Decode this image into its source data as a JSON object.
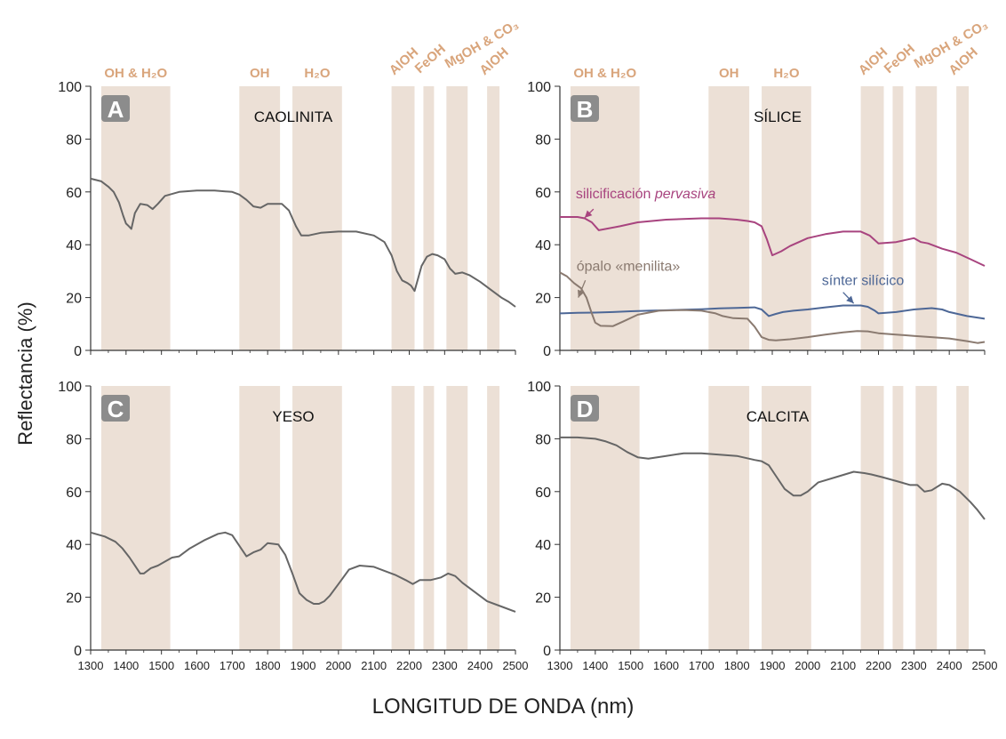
{
  "figure": {
    "ylabel": "Reflectancia (%)",
    "xlabel": "LONGITUD DE ONDA (nm)",
    "xlim": [
      1300,
      2500
    ],
    "ylim": [
      0,
      100
    ],
    "xticks": [
      1300,
      1400,
      1500,
      1600,
      1700,
      1800,
      1900,
      2000,
      2100,
      2200,
      2300,
      2400,
      2500
    ],
    "yticks": [
      0,
      20,
      40,
      60,
      80,
      100
    ],
    "band_color": "#ece0d6",
    "band_label_color": "#d9a57c",
    "curve_color": "#666666",
    "bands": [
      {
        "label": "OH & H₂O",
        "from": 1330,
        "to": 1525
      },
      {
        "label": "OH",
        "from": 1720,
        "to": 1835
      },
      {
        "label": "H₂O",
        "from": 1870,
        "to": 2010
      },
      {
        "label": "AlOH",
        "from": 2150,
        "to": 2215
      },
      {
        "label": "FeOH",
        "from": 2240,
        "to": 2270
      },
      {
        "label": "MgOH & CO₃",
        "from": 2305,
        "to": 2365
      },
      {
        "label": "AlOH",
        "from": 2420,
        "to": 2455
      }
    ]
  },
  "chart_data": [
    {
      "type": "line",
      "panel": "A",
      "title": "CAOLINITA",
      "xlim": [
        1300,
        2500
      ],
      "ylim": [
        0,
        100
      ],
      "series": [
        {
          "color": "#666666",
          "x": [
            1300,
            1330,
            1350,
            1365,
            1380,
            1392,
            1400,
            1408,
            1415,
            1425,
            1440,
            1460,
            1475,
            1490,
            1510,
            1550,
            1600,
            1650,
            1700,
            1720,
            1740,
            1760,
            1780,
            1800,
            1840,
            1860,
            1880,
            1895,
            1915,
            1950,
            2000,
            2050,
            2100,
            2130,
            2150,
            2165,
            2180,
            2195,
            2205,
            2215,
            2235,
            2250,
            2265,
            2280,
            2300,
            2315,
            2330,
            2350,
            2370,
            2400,
            2430,
            2460,
            2480,
            2500
          ],
          "y": [
            65,
            64,
            62,
            60,
            56,
            51,
            48,
            47,
            46,
            52,
            55.5,
            55,
            53.5,
            55.5,
            58.5,
            60,
            60.5,
            60.5,
            60,
            59,
            57,
            54.5,
            54,
            55.5,
            55.5,
            53,
            47,
            43.5,
            43.5,
            44.5,
            45,
            45,
            43.5,
            41,
            36,
            30,
            26.5,
            25.5,
            24.5,
            22.5,
            32,
            35.5,
            36.5,
            36,
            34.5,
            31,
            29,
            29.5,
            28.5,
            26,
            23,
            20,
            18.5,
            16.5
          ]
        }
      ]
    },
    {
      "type": "line",
      "panel": "B",
      "title": "SÍLICE",
      "xlim": [
        1300,
        2500
      ],
      "ylim": [
        0,
        100
      ],
      "series": [
        {
          "name": "silicificación pervasiva",
          "color": "#a8447f",
          "x": [
            1300,
            1350,
            1370,
            1390,
            1410,
            1430,
            1470,
            1520,
            1600,
            1700,
            1750,
            1800,
            1830,
            1850,
            1870,
            1885,
            1900,
            1925,
            1950,
            2000,
            2050,
            2100,
            2150,
            2175,
            2200,
            2250,
            2300,
            2320,
            2340,
            2380,
            2420,
            2460,
            2500
          ],
          "y": [
            50.5,
            50.5,
            50,
            48.5,
            45.5,
            46,
            47,
            48.5,
            49.5,
            50,
            50,
            49.5,
            49,
            48.5,
            47,
            42,
            36,
            37.5,
            39.5,
            42.5,
            44,
            45,
            45,
            43.5,
            40.5,
            41,
            42.5,
            41,
            40.5,
            38.5,
            37,
            34.5,
            32
          ]
        },
        {
          "name": "sínter silícico",
          "color": "#4d6796",
          "x": [
            1300,
            1350,
            1400,
            1450,
            1500,
            1550,
            1600,
            1650,
            1700,
            1750,
            1800,
            1850,
            1870,
            1890,
            1910,
            1930,
            1960,
            2000,
            2050,
            2100,
            2150,
            2170,
            2190,
            2200,
            2250,
            2300,
            2350,
            2380,
            2400,
            2450,
            2500
          ],
          "y": [
            14,
            14.2,
            14.3,
            14.5,
            14.8,
            15,
            15.2,
            15.4,
            15.6,
            15.9,
            16.1,
            16.3,
            15.5,
            13,
            13.8,
            14.5,
            15,
            15.5,
            16.3,
            17,
            17,
            16.5,
            15,
            14,
            14.5,
            15.5,
            16,
            15.5,
            14.5,
            13,
            12
          ]
        },
        {
          "name": "ópalo «menilita»",
          "color": "#8a7a70",
          "x": [
            1300,
            1320,
            1340,
            1360,
            1375,
            1390,
            1400,
            1415,
            1450,
            1480,
            1520,
            1580,
            1650,
            1700,
            1740,
            1760,
            1790,
            1830,
            1850,
            1870,
            1890,
            1910,
            1950,
            2000,
            2050,
            2100,
            2140,
            2170,
            2200,
            2250,
            2300,
            2350,
            2400,
            2450,
            2480,
            2500
          ],
          "y": [
            29.5,
            28,
            25.5,
            23.5,
            20,
            14,
            10.5,
            9.3,
            9.2,
            11,
            13.5,
            15,
            15.3,
            15,
            14,
            13,
            12.2,
            12,
            9,
            5,
            4,
            3.8,
            4.2,
            5,
            6,
            6.8,
            7.3,
            7.2,
            6.5,
            6,
            5.5,
            5,
            4.5,
            3.5,
            2.8,
            3.2
          ]
        }
      ],
      "annotations": [
        {
          "text": "silicificación pervasiva"
        },
        {
          "text": "ópalo «menilita»"
        },
        {
          "text": "sínter silícico"
        }
      ]
    },
    {
      "type": "line",
      "panel": "C",
      "title": "YESO",
      "xlim": [
        1300,
        2500
      ],
      "ylim": [
        0,
        100
      ],
      "series": [
        {
          "color": "#666666",
          "x": [
            1300,
            1340,
            1370,
            1390,
            1410,
            1430,
            1440,
            1450,
            1470,
            1490,
            1510,
            1530,
            1550,
            1580,
            1620,
            1660,
            1680,
            1700,
            1720,
            1740,
            1760,
            1780,
            1800,
            1830,
            1850,
            1870,
            1890,
            1910,
            1930,
            1945,
            1960,
            1975,
            2000,
            2030,
            2060,
            2100,
            2130,
            2160,
            2190,
            2210,
            2230,
            2260,
            2290,
            2310,
            2330,
            2350,
            2380,
            2420,
            2460,
            2500
          ],
          "y": [
            44.5,
            43,
            41,
            38.5,
            35,
            31,
            29,
            29,
            31,
            32,
            33.5,
            35,
            35.5,
            38.5,
            41.5,
            44,
            44.5,
            43.5,
            39.5,
            35.5,
            37,
            38,
            40.5,
            40,
            36,
            29,
            21.5,
            19,
            17.5,
            17.5,
            18.5,
            20.5,
            25,
            30.5,
            32,
            31.5,
            30,
            28.5,
            26.5,
            25,
            26.5,
            26.5,
            27.5,
            29,
            28,
            25.5,
            22.5,
            18.5,
            16.5,
            14.5
          ]
        }
      ]
    },
    {
      "type": "line",
      "panel": "D",
      "title": "CALCITA",
      "xlim": [
        1300,
        2500
      ],
      "ylim": [
        0,
        100
      ],
      "series": [
        {
          "color": "#666666",
          "x": [
            1300,
            1350,
            1400,
            1430,
            1460,
            1490,
            1520,
            1550,
            1600,
            1650,
            1700,
            1750,
            1800,
            1850,
            1870,
            1890,
            1910,
            1935,
            1960,
            1980,
            2000,
            2030,
            2080,
            2130,
            2160,
            2180,
            2210,
            2250,
            2290,
            2310,
            2330,
            2350,
            2380,
            2400,
            2430,
            2460,
            2480,
            2500
          ],
          "y": [
            80.5,
            80.5,
            80,
            79,
            77.5,
            75,
            73,
            72.5,
            73.5,
            74.5,
            74.5,
            74,
            73.5,
            72,
            71.5,
            70,
            66,
            61,
            58.5,
            58.5,
            60,
            63.5,
            65.5,
            67.5,
            67,
            66.5,
            65.5,
            64,
            62.5,
            62.5,
            60,
            60.5,
            63,
            62.5,
            60,
            56,
            53,
            49.5
          ]
        }
      ]
    }
  ]
}
